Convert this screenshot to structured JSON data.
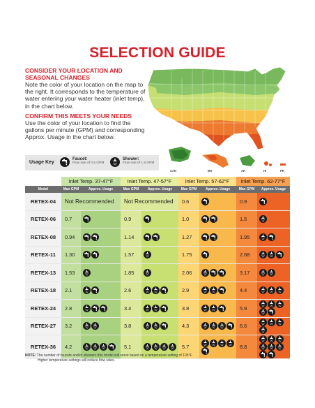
{
  "title": "SELECTION GUIDE",
  "intro": {
    "heading1": "CONSIDER YOUR LOCATION AND SEASONAL CHANGES",
    "text1": "Note the color of your location on the map to the right. It corresponds to the temperature of water entering your water heater (inlet temp), in the chart below.",
    "heading2": "CONFIRM THIS MEETS YOUR NEEDS",
    "text2": "Use the color of your location to find the gallons per minute (GPM) and corresponding Approx. Usage in the chart below."
  },
  "usage_key": {
    "label": "Usage Key",
    "faucet_title": "Faucet:",
    "faucet_desc": "Flow rate of 0.5 GPM",
    "shower_title": "Shower:",
    "shower_desc": "Flow rate of 1.5 GPM",
    "faucet_icon": "faucet-icon",
    "shower_icon": "shower-icon"
  },
  "map_insets": {
    "labels": [
      "CAN",
      "MX",
      "AK",
      "HI",
      "PR"
    ]
  },
  "colors": {
    "zone1": "#a8d27f",
    "zone2": "#c8df72",
    "zone3": "#f8b84c",
    "zone4": "#ed6326",
    "accent": "#d4222b"
  },
  "table": {
    "model_header": "Model",
    "groups": [
      "Inlet Temp. 37-47°F",
      "Inlet Temp. 47-57°F",
      "Inlet Temp. 57-62°F",
      "Inlet Temp. 62-77°F"
    ],
    "sub_headers": [
      "Max GPM",
      "Approx. Usage"
    ],
    "not_recommended": "Not Recommended",
    "rows": [
      {
        "model": "RETEX-04",
        "cells": [
          {
            "nr": true
          },
          {
            "nr": true
          },
          {
            "gpm": "0.6",
            "f": 1,
            "s": 0
          },
          {
            "gpm": "0.9",
            "f": 1,
            "s": 0
          }
        ]
      },
      {
        "model": "RETEX-06",
        "cells": [
          {
            "gpm": "0.7",
            "f": 1,
            "s": 0
          },
          {
            "gpm": "0.9",
            "f": 1,
            "s": 0
          },
          {
            "gpm": "1.0",
            "f": 2,
            "s": 0
          },
          {
            "gpm": "1.5",
            "f": 0,
            "s": 1
          }
        ]
      },
      {
        "model": "RETEX-08",
        "cells": [
          {
            "gpm": "0.94",
            "f": 2,
            "s": 0
          },
          {
            "gpm": "1.14",
            "f": 2,
            "s": 0
          },
          {
            "gpm": "1.27",
            "f": 2,
            "s": 0
          },
          {
            "gpm": "1.95",
            "f": 1,
            "s": 1
          }
        ]
      },
      {
        "model": "RETEX-11",
        "cells": [
          {
            "gpm": "1.30",
            "f": 2,
            "s": 0
          },
          {
            "gpm": "1.57",
            "f": 0,
            "s": 1
          },
          {
            "gpm": "1.75",
            "f": 1,
            "s": 0
          },
          {
            "gpm": "2.68",
            "f": 1,
            "s": 2
          }
        ]
      },
      {
        "model": "RETEX-13",
        "cells": [
          {
            "gpm": "1.53",
            "f": 0,
            "s": 1
          },
          {
            "gpm": "1.85",
            "f": 0,
            "s": 1
          },
          {
            "gpm": "2.06",
            "f": 2,
            "s": 1
          },
          {
            "gpm": "3.17",
            "f": 0,
            "s": 2
          }
        ]
      },
      {
        "model": "RETEX-18",
        "cells": [
          {
            "gpm": "2.1",
            "f": 1,
            "s": 1
          },
          {
            "gpm": "2.6",
            "f": 1,
            "s": 2
          },
          {
            "gpm": "2.9",
            "f": 1,
            "s": 2
          },
          {
            "gpm": "4.4",
            "f": 0,
            "s": 3
          }
        ]
      },
      {
        "model": "RETEX-24",
        "cells": [
          {
            "gpm": "2.8",
            "f": 2,
            "s": 1
          },
          {
            "gpm": "3.4",
            "f": 1,
            "s": 2
          },
          {
            "gpm": "3.8",
            "f": 1,
            "s": 2
          },
          {
            "gpm": "5.9",
            "f": 1,
            "s": 4
          }
        ]
      },
      {
        "model": "RETEX-27",
        "cells": [
          {
            "gpm": "3.2",
            "f": 0,
            "s": 2
          },
          {
            "gpm": "3.8",
            "f": 1,
            "s": 2
          },
          {
            "gpm": "4.3",
            "f": 1,
            "s": 3
          },
          {
            "gpm": "6.6",
            "f": 0,
            "s": 4
          }
        ]
      },
      {
        "model": "RETEX-36",
        "cells": [
          {
            "gpm": "4.2",
            "f": 1,
            "s": 3
          },
          {
            "gpm": "5.1",
            "f": 0,
            "s": 4
          },
          {
            "gpm": "5.7",
            "f": 1,
            "s": 4
          },
          {
            "gpm": "8.8",
            "f": 2,
            "s": 6
          }
        ]
      }
    ]
  },
  "note": {
    "label": "NOTE:",
    "text": "The number of faucets and/or showers this model will serve based on a temperature setting of 105°F",
    "text2": "Higher temperature settings will reduce flow rates."
  }
}
